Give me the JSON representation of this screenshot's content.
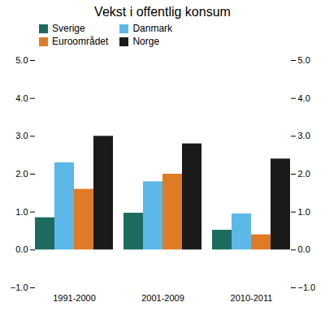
{
  "chart_data": {
    "type": "bar",
    "title": "Vekst i offentlig konsum",
    "categories": [
      "1991-2000",
      "2001-2009",
      "2010-2011"
    ],
    "series": [
      {
        "name": "Sverige",
        "color": "#1d6b5e",
        "values": [
          0.85,
          0.97,
          0.52
        ]
      },
      {
        "name": "Danmark",
        "color": "#5bb8e8",
        "values": [
          2.3,
          1.8,
          0.95
        ]
      },
      {
        "name": "Euroområdet",
        "color": "#e07b25",
        "values": [
          1.6,
          2.0,
          0.4
        ]
      },
      {
        "name": "Norge",
        "color": "#1a1a1a",
        "values": [
          3.0,
          2.8,
          2.4
        ]
      }
    ],
    "ylim": [
      -1,
      5
    ],
    "yticks": [
      -1,
      0,
      1,
      2,
      3,
      4,
      5
    ],
    "grid": false,
    "legend": "upper left"
  }
}
